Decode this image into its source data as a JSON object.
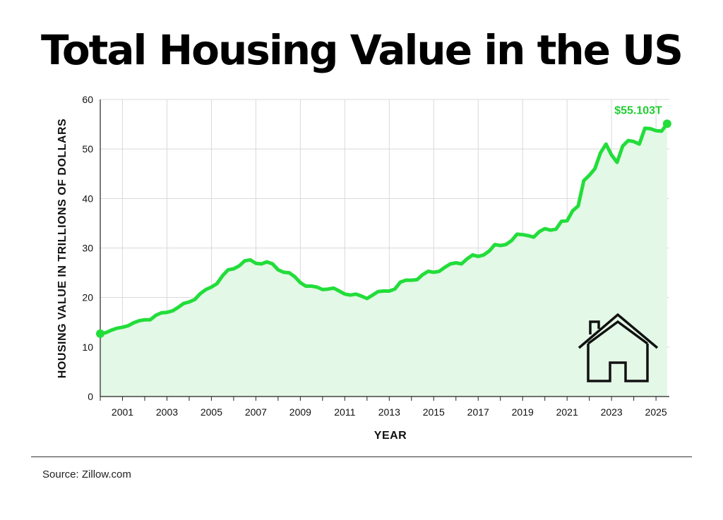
{
  "title": "Total Housing Value in the US",
  "source": "Source: Zillow.com",
  "colors": {
    "line": "#22dd3a",
    "fill": "#e3f8e6",
    "annotation": "#22cc33",
    "grid": "#d9d9d9",
    "axis": "#222222"
  },
  "icon": "house-icon",
  "chart_data": {
    "type": "area",
    "title": "Total Housing Value in the US",
    "xlabel": "YEAR",
    "ylabel": "HOUSING VALUE IN TRILLIONS OF DOLLARS",
    "xlim": [
      2000.0,
      2025.6
    ],
    "ylim": [
      0,
      60
    ],
    "yticks": [
      0,
      10,
      20,
      30,
      40,
      50,
      60
    ],
    "xticks": [
      2001,
      2003,
      2005,
      2007,
      2009,
      2011,
      2013,
      2015,
      2017,
      2019,
      2021,
      2023,
      2025
    ],
    "grid": true,
    "annotation": {
      "label": "$55.103T",
      "x": 2025.5,
      "y": 55.103
    },
    "series": [
      {
        "x": [
          2000.0,
          2000.25,
          2000.5,
          2000.75,
          2001.0,
          2001.25,
          2001.5,
          2001.75,
          2002.0,
          2002.25,
          2002.5,
          2002.75,
          2003.0,
          2003.25,
          2003.5,
          2003.75,
          2004.0,
          2004.25,
          2004.5,
          2004.75,
          2005.0,
          2005.25,
          2005.5,
          2005.75,
          2006.0,
          2006.25,
          2006.5,
          2006.75,
          2007.0,
          2007.25,
          2007.5,
          2007.75,
          2008.0,
          2008.25,
          2008.5,
          2008.75,
          2009.0,
          2009.25,
          2009.5,
          2009.75,
          2010.0,
          2010.25,
          2010.5,
          2010.75,
          2011.0,
          2011.25,
          2011.5,
          2011.75,
          2012.0,
          2012.25,
          2012.5,
          2012.75,
          2013.0,
          2013.25,
          2013.5,
          2013.75,
          2014.0,
          2014.25,
          2014.5,
          2014.75,
          2015.0,
          2015.25,
          2015.5,
          2015.75,
          2016.0,
          2016.25,
          2016.5,
          2016.75,
          2017.0,
          2017.25,
          2017.5,
          2017.75,
          2018.0,
          2018.25,
          2018.5,
          2018.75,
          2019.0,
          2019.25,
          2019.5,
          2019.75,
          2020.0,
          2020.25,
          2020.5,
          2020.75,
          2021.0,
          2021.25,
          2021.5,
          2021.75,
          2022.0,
          2022.25,
          2022.5,
          2022.75,
          2023.0,
          2023.25,
          2023.5,
          2023.75,
          2024.0,
          2024.25,
          2024.5,
          2024.75,
          2025.0,
          2025.25,
          2025.5
        ],
        "values": [
          12.7,
          12.9,
          13.4,
          13.8,
          14.0,
          14.3,
          14.9,
          15.3,
          15.5,
          15.5,
          16.4,
          16.9,
          17.0,
          17.3,
          18.0,
          18.8,
          19.1,
          19.6,
          20.8,
          21.6,
          22.1,
          22.8,
          24.4,
          25.6,
          25.8,
          26.4,
          27.4,
          27.6,
          26.9,
          26.8,
          27.2,
          26.8,
          25.6,
          25.1,
          25.0,
          24.2,
          23.0,
          22.3,
          22.3,
          22.1,
          21.6,
          21.7,
          21.9,
          21.3,
          20.7,
          20.5,
          20.7,
          20.3,
          19.8,
          20.5,
          21.2,
          21.3,
          21.3,
          21.7,
          23.1,
          23.5,
          23.5,
          23.6,
          24.6,
          25.3,
          25.1,
          25.3,
          26.1,
          26.8,
          27.0,
          26.8,
          27.8,
          28.6,
          28.3,
          28.6,
          29.4,
          30.7,
          30.5,
          30.7,
          31.5,
          32.8,
          32.7,
          32.5,
          32.2,
          33.3,
          33.9,
          33.6,
          33.8,
          35.4,
          35.5,
          37.5,
          38.5,
          43.6,
          44.7,
          46.0,
          49.2,
          51.0,
          48.8,
          47.3,
          50.6,
          51.7,
          51.5,
          51.0,
          54.2,
          54.1,
          53.7,
          53.6,
          55.1
        ]
      }
    ]
  }
}
